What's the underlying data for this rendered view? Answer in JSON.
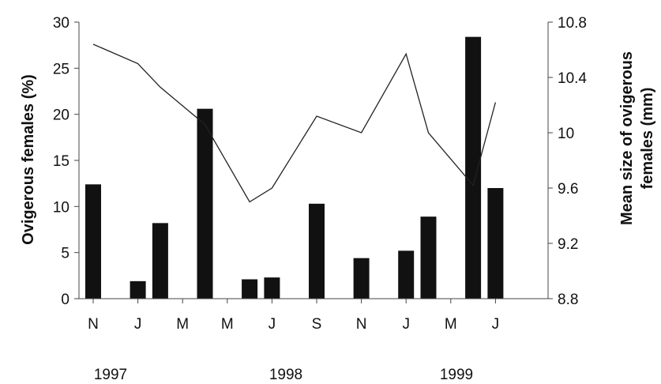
{
  "chart_data": {
    "type": "bar",
    "categories": [
      "N",
      "J",
      "M",
      "M",
      "J",
      "S",
      "N",
      "J",
      "M",
      "J"
    ],
    "year_labels": [
      "1997",
      "1998",
      "1999"
    ],
    "ylabel": "Ovigerous females (%)",
    "y2label_line1": "Mean size of ovigerous",
    "y2label_line2": "females (mm)",
    "ylim": [
      0,
      30
    ],
    "y_ticks": [
      0,
      5,
      10,
      15,
      20,
      25,
      30
    ],
    "y2lim": [
      8.8,
      10.8
    ],
    "y2_ticks": [
      "8.8",
      "9.2",
      "9.6",
      "10",
      "10.4",
      "10.8"
    ],
    "x_months_span": [
      0,
      20
    ],
    "bars": [
      {
        "month": 0,
        "value": 12.4
      },
      {
        "month": 2,
        "value": 1.9
      },
      {
        "month": 3,
        "value": 8.2
      },
      {
        "month": 5,
        "value": 20.6
      },
      {
        "month": 7,
        "value": 2.1
      },
      {
        "month": 8,
        "value": 2.3
      },
      {
        "month": 10,
        "value": 10.3
      },
      {
        "month": 12,
        "value": 4.4
      },
      {
        "month": 14,
        "value": 5.2
      },
      {
        "month": 15,
        "value": 8.9
      },
      {
        "month": 17,
        "value": 28.4
      },
      {
        "month": 18,
        "value": 12.0
      }
    ],
    "line": [
      {
        "month": 0,
        "value": 10.64
      },
      {
        "month": 2,
        "value": 10.5
      },
      {
        "month": 3,
        "value": 10.33
      },
      {
        "month": 5,
        "value": 10.06
      },
      {
        "month": 7,
        "value": 9.5
      },
      {
        "month": 8,
        "value": 9.6
      },
      {
        "month": 10,
        "value": 10.12
      },
      {
        "month": 12,
        "value": 10.0
      },
      {
        "month": 14,
        "value": 10.57
      },
      {
        "month": 15,
        "value": 10.0
      },
      {
        "month": 17,
        "value": 9.62
      },
      {
        "month": 18,
        "value": 10.22
      }
    ],
    "colors": {
      "bar": "#111111",
      "line": "#222222",
      "axis": "#444444"
    },
    "grid": false
  }
}
